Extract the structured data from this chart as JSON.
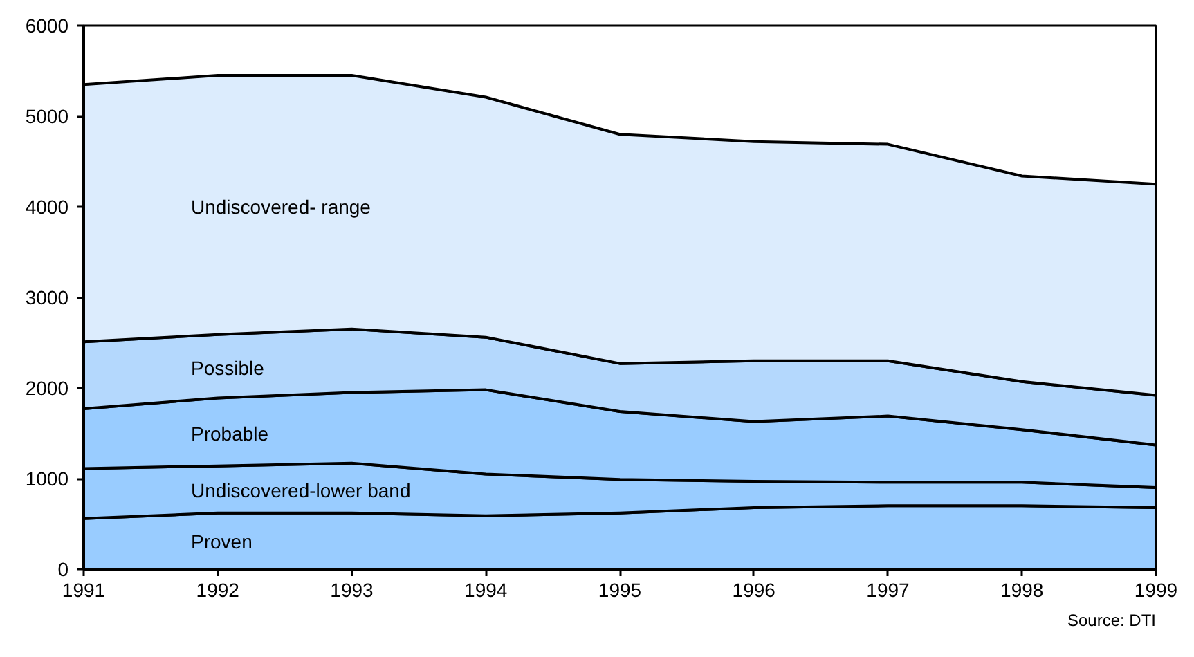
{
  "chart_data": {
    "type": "area",
    "stacked": true,
    "x": [
      1991,
      1992,
      1993,
      1994,
      1995,
      1996,
      1997,
      1998,
      1999
    ],
    "xlim": [
      1991,
      1999
    ],
    "xticks": [
      1991,
      1992,
      1993,
      1994,
      1995,
      1996,
      1997,
      1998,
      1999
    ],
    "ylim": [
      0,
      6000
    ],
    "yticks": [
      0,
      1000,
      2000,
      3000,
      4000,
      5000,
      6000
    ],
    "series": [
      {
        "name": "Proven",
        "color": "#99ccff",
        "values": [
          560,
          620,
          620,
          590,
          620,
          680,
          700,
          700,
          680
        ]
      },
      {
        "name": "Undiscovered-lower band",
        "color": "#99ccff",
        "values": [
          550,
          520,
          550,
          460,
          370,
          290,
          260,
          260,
          220
        ]
      },
      {
        "name": "Probable",
        "color": "#99ccff",
        "values": [
          660,
          750,
          780,
          930,
          750,
          660,
          730,
          580,
          470
        ]
      },
      {
        "name": "Possible",
        "color": "#b4d8fd",
        "values": [
          740,
          700,
          700,
          580,
          530,
          670,
          610,
          530,
          550
        ]
      },
      {
        "name": "Undiscovered- range",
        "color": "#dcecfd",
        "values": [
          2840,
          2860,
          2800,
          2650,
          2530,
          2420,
          2390,
          2270,
          2330
        ]
      }
    ],
    "annotations": [
      "Source: DTI"
    ]
  }
}
